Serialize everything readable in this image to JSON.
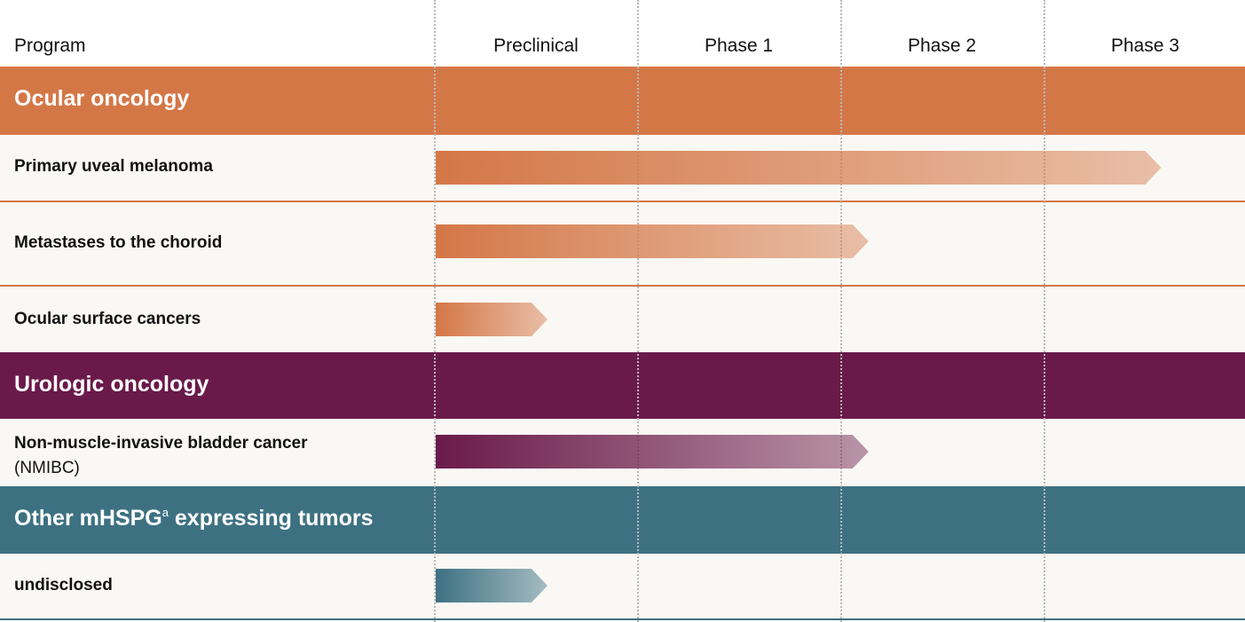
{
  "colors": {
    "ocular": "#d47747",
    "urologic": "#6a1a4a",
    "other": "#3d7182",
    "row_bg": "#faf8f4"
  },
  "header": {
    "program": "Program",
    "phases": [
      "Preclinical",
      "Phase 1",
      "Phase 2",
      "Phase 3"
    ]
  },
  "groups": {
    "ocular": {
      "title": "Ocular oncology"
    },
    "urologic": {
      "title": "Urologic oncology"
    },
    "other": {
      "title_main": "Other mHSPG",
      "title_sup": "a",
      "title_rest": " expressing tumors"
    }
  },
  "rows": {
    "r1": {
      "label": "Primary uveal melanoma"
    },
    "r2": {
      "label": "Metastases to the choroid"
    },
    "r3": {
      "label": "Ocular surface cancers"
    },
    "r4": {
      "label": "Non-muscle-invasive bladder cancer",
      "sub": "(NMIBC)"
    },
    "r5": {
      "label": "undisclosed"
    }
  },
  "chart_data": {
    "type": "bar",
    "stages": [
      "Preclinical",
      "Phase 1",
      "Phase 2",
      "Phase 3"
    ],
    "series": [
      {
        "program": "Primary uveal melanoma",
        "group": "Ocular oncology",
        "progress": 3.57,
        "color": "#d47747"
      },
      {
        "program": "Metastases to the choroid",
        "group": "Ocular oncology",
        "progress": 2.13,
        "color": "#d47747"
      },
      {
        "program": "Ocular surface cancers",
        "group": "Ocular oncology",
        "progress": 0.55,
        "color": "#d47747"
      },
      {
        "program": "Non-muscle-invasive bladder cancer (NMIBC)",
        "group": "Urologic oncology",
        "progress": 2.13,
        "color": "#6a1a4a"
      },
      {
        "program": "undisclosed",
        "group": "Other mHSPG expressing tumors",
        "progress": 0.55,
        "color": "#3d7182"
      }
    ]
  }
}
